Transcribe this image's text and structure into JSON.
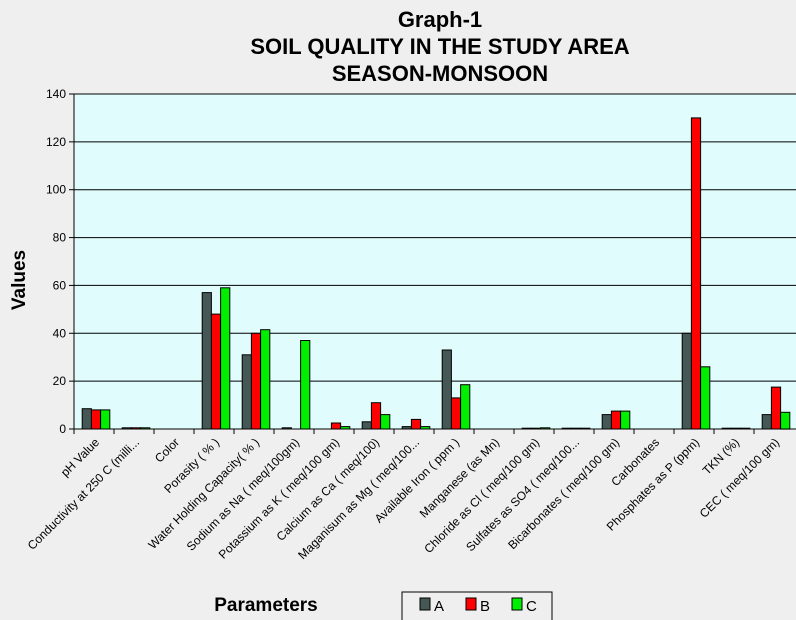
{
  "colors": {
    "A": "#465856",
    "B": "#ff0000",
    "C": "#00ee00",
    "plot_bg": "#e0fcfc"
  },
  "chart_data": {
    "type": "bar",
    "title": [
      "Graph-1",
      "SOIL QUALITY IN THE STUDY AREA",
      "SEASON-MONSOON"
    ],
    "xlabel": "Parameters",
    "ylabel": "Values",
    "ylim": [
      0,
      140
    ],
    "yticks": [
      0,
      20,
      40,
      60,
      80,
      100,
      120,
      140
    ],
    "grid": true,
    "legend": "bottom",
    "categories": [
      "pH Value",
      "Conductivity at 250 C (milli...",
      "Color",
      "Porasity ( % )",
      "Water Holding Capacity( % )",
      "Sodium as Na  ( meq/100gm)",
      "Potassium as K  ( meq/100 gm)",
      "Calcium as Ca  ( meq/100)",
      "Maganisum as Mg  ( meq/100...",
      "Available Iron ( ppm )",
      "Manganese (as Mn)",
      "Chloride as Cl  ( meq/100 gm)",
      "Sulfates as SO4   ( meq/100...",
      "Bicarbonates ( meq/100 gm)",
      "Carbonates",
      "Phosphates as P  (ppm)",
      "TKN (%)",
      "CEC  ( meq/100 gm)"
    ],
    "series": [
      {
        "name": "A",
        "values": [
          8.5,
          0.5,
          0,
          57,
          31,
          0.5,
          0,
          3,
          1,
          33,
          0,
          0.2,
          0.2,
          6,
          0,
          40,
          0.2,
          6
        ]
      },
      {
        "name": "B",
        "values": [
          8,
          0.5,
          0,
          48,
          40,
          0,
          2.5,
          11,
          4,
          13,
          0,
          0.2,
          0.2,
          7.5,
          0,
          130,
          0.2,
          17.5
        ]
      },
      {
        "name": "C",
        "values": [
          8,
          0.5,
          0,
          59,
          41.5,
          37,
          1,
          6,
          1,
          18.5,
          0,
          0.5,
          0.2,
          7.5,
          0,
          26,
          0.2,
          7
        ]
      }
    ]
  }
}
